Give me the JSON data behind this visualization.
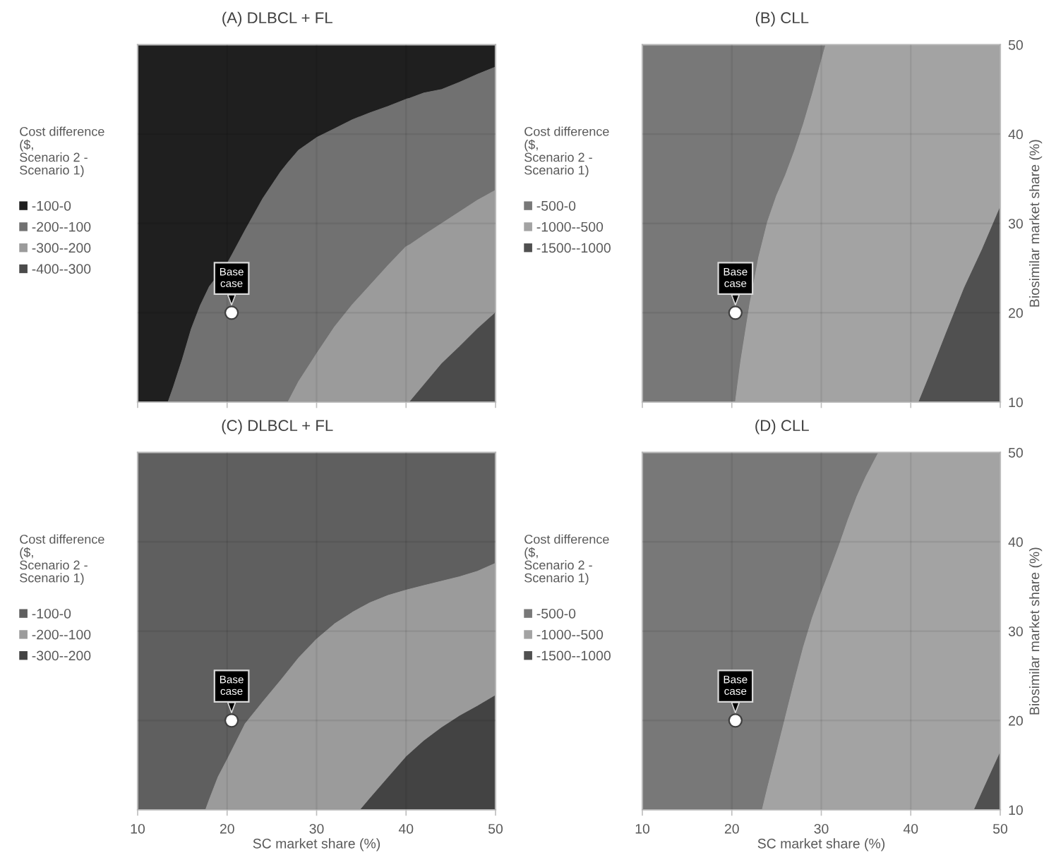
{
  "chart_data": [
    {
      "type": "area",
      "title": "(A) DLBCL + FL",
      "legend_title": "Cost difference\n($,\nScenario 2 -\nScenario 1)",
      "legend": "left",
      "grid": true,
      "tick_labels": false,
      "xlim": [
        10,
        50
      ],
      "ylim": [
        10,
        50
      ],
      "xticks": [
        10,
        20,
        30,
        40,
        50
      ],
      "yticks": [
        10,
        20,
        30,
        40,
        50
      ],
      "x": [
        10,
        12,
        13.4,
        14,
        15,
        16,
        17,
        18,
        20,
        20.5,
        22,
        24,
        26,
        26.8,
        28,
        30,
        32,
        34,
        36,
        38,
        40,
        40.4,
        42,
        44,
        46,
        48,
        50
      ],
      "series": [
        {
          "name": "-100-0",
          "color": "#1f1f1f",
          "values": [
            50,
            50,
            50,
            50,
            50,
            50,
            50,
            50,
            50,
            50,
            50,
            50,
            50,
            50,
            50,
            50,
            50,
            50,
            50,
            50,
            50,
            50,
            50,
            50,
            50,
            50,
            50
          ]
        },
        {
          "name": "-200--100",
          "color": "#717171",
          "values": [
            null,
            null,
            10,
            11.7,
            14.8,
            18.2,
            20.8,
            22.9,
            25.5,
            26.4,
            29.2,
            32.8,
            35.8,
            36.8,
            38.2,
            39.6,
            40.6,
            41.6,
            42.4,
            43.1,
            43.9,
            44.0,
            44.6,
            45.0,
            45.8,
            46.7,
            47.5
          ]
        },
        {
          "name": "-300--200",
          "color": "#9b9b9b",
          "values": [
            null,
            null,
            null,
            null,
            null,
            null,
            null,
            null,
            null,
            null,
            null,
            null,
            null,
            10,
            12.3,
            15.4,
            18.4,
            20.9,
            23.1,
            25.3,
            27.4,
            27.6,
            28.7,
            30.0,
            31.3,
            32.6,
            33.7
          ]
        },
        {
          "name": "-400--300",
          "color": "#4b4b4b",
          "values": [
            null,
            null,
            null,
            null,
            null,
            null,
            null,
            null,
            null,
            null,
            null,
            null,
            null,
            null,
            null,
            null,
            null,
            null,
            null,
            null,
            null,
            10,
            11.9,
            14.3,
            16.2,
            18.2,
            20.0
          ]
        },
        {
          "type": "scatter",
          "marker": "circle",
          "color": "#ffffff",
          "values": [
            null,
            null,
            null,
            null,
            null,
            null,
            null,
            null,
            null,
            20,
            null,
            null,
            null,
            null,
            null,
            null,
            null,
            null,
            null,
            null,
            null,
            null,
            null,
            null,
            null,
            null,
            null
          ]
        }
      ],
      "annotations": [
        "Base\ncase"
      ]
    },
    {
      "type": "area",
      "title": "(B) CLL",
      "ylabel": "Biosimilar market share (%)",
      "legend_title": "Cost difference\n($,\nScenario 2 -\nScenario 1)",
      "legend": "left",
      "grid": true,
      "tick_labels": "y",
      "xlim": [
        10,
        50
      ],
      "ylim": [
        10,
        50
      ],
      "xticks": [
        10,
        20,
        30,
        40,
        50
      ],
      "yticks": [
        10,
        20,
        30,
        40,
        50
      ],
      "x": [
        10,
        15,
        20,
        20.4,
        21,
        22,
        23,
        24,
        25,
        26,
        27,
        28,
        29,
        30,
        30.5,
        35,
        40,
        40.9,
        42,
        44,
        46,
        48,
        50
      ],
      "series": [
        {
          "name": "-500-0",
          "color": "#787878",
          "values": [
            50,
            50,
            50,
            50,
            50,
            50,
            50,
            50,
            50,
            50,
            50,
            50,
            50,
            50,
            50,
            null,
            null,
            null,
            null,
            null,
            null,
            null,
            null
          ]
        },
        {
          "name": "-1000--500",
          "color": "#a3a3a3",
          "values": [
            null,
            null,
            null,
            10,
            14.6,
            20.9,
            26.2,
            30.2,
            33.1,
            35.4,
            38.1,
            41.1,
            44.5,
            48.2,
            50,
            50,
            50,
            50,
            50,
            50,
            50,
            50,
            50
          ]
        },
        {
          "name": "-1500--1000",
          "color": "#505050",
          "values": [
            null,
            null,
            null,
            null,
            null,
            null,
            null,
            null,
            null,
            null,
            null,
            null,
            null,
            null,
            null,
            null,
            null,
            10,
            12.7,
            17.8,
            22.8,
            27.1,
            31.8
          ]
        },
        {
          "type": "scatter",
          "marker": "circle",
          "color": "#ffffff",
          "values": [
            null,
            null,
            null,
            20,
            null,
            null,
            null,
            null,
            null,
            null,
            null,
            null,
            null,
            null,
            null,
            null,
            null,
            null,
            null,
            null,
            null,
            null,
            null
          ]
        }
      ],
      "annotations": [
        "Base\ncase"
      ]
    },
    {
      "type": "area",
      "title": "(C) DLBCL + FL",
      "xlabel": "SC market share (%)",
      "legend_title": "Cost difference\n($,\nScenario 2 -\nScenario 1)",
      "legend": "left",
      "grid": true,
      "tick_labels": "x",
      "xlim": [
        10,
        50
      ],
      "ylim": [
        10,
        50
      ],
      "xticks": [
        10,
        20,
        30,
        40,
        50
      ],
      "yticks": [
        10,
        20,
        30,
        40,
        50
      ],
      "x": [
        10,
        15,
        17.6,
        18,
        19,
        20,
        20.5,
        22,
        24,
        26,
        28,
        30,
        32,
        34,
        34.9,
        36,
        38,
        40,
        42,
        44,
        46,
        48,
        50
      ],
      "series": [
        {
          "name": "-100-0",
          "color": "#5f5f5f",
          "values": [
            50,
            50,
            50,
            50,
            50,
            50,
            50,
            50,
            50,
            50,
            50,
            50,
            50,
            50,
            50,
            50,
            50,
            50,
            50,
            50,
            50,
            50,
            50
          ]
        },
        {
          "name": "-200--100",
          "color": "#9b9b9b",
          "values": [
            null,
            null,
            10,
            11.1,
            13.7,
            15.6,
            16.6,
            19.6,
            22.1,
            24.5,
            27.0,
            29.1,
            30.8,
            32.1,
            32.6,
            33.2,
            34.0,
            34.6,
            35.1,
            35.6,
            36.1,
            36.7,
            37.6
          ]
        },
        {
          "name": "-300--200",
          "color": "#434343",
          "values": [
            null,
            null,
            null,
            null,
            null,
            null,
            null,
            null,
            null,
            null,
            null,
            null,
            null,
            null,
            10,
            11.3,
            13.6,
            15.9,
            17.7,
            19.2,
            20.5,
            21.6,
            22.8
          ]
        },
        {
          "type": "scatter",
          "marker": "circle",
          "color": "#ffffff",
          "values": [
            null,
            null,
            null,
            null,
            null,
            null,
            20,
            null,
            null,
            null,
            null,
            null,
            null,
            null,
            null,
            null,
            null,
            null,
            null,
            null,
            null,
            null,
            null
          ]
        }
      ],
      "annotations": [
        "Base\ncase"
      ]
    },
    {
      "type": "area",
      "title": "(D) CLL",
      "xlabel": "SC market share (%)",
      "ylabel": "Biosimilar market share (%)",
      "legend_title": "Cost difference\n($,\nScenario 2 -\nScenario 1)",
      "legend": "left",
      "grid": true,
      "xlim": [
        10,
        50
      ],
      "ylim": [
        10,
        50
      ],
      "xticks": [
        10,
        20,
        30,
        40,
        50
      ],
      "yticks": [
        10,
        20,
        30,
        40,
        50
      ],
      "x": [
        10,
        15,
        20,
        20.4,
        23.4,
        24,
        25,
        26,
        27,
        28,
        29,
        30,
        31,
        32,
        33,
        34,
        35,
        36.4,
        40,
        45,
        47.1,
        48,
        49,
        50
      ],
      "series": [
        {
          "name": "-500-0",
          "color": "#787878",
          "values": [
            50,
            50,
            50,
            50,
            50,
            50,
            50,
            50,
            50,
            50,
            50,
            50,
            50,
            50,
            50,
            50,
            50,
            50,
            null,
            null,
            null,
            null,
            null,
            null
          ]
        },
        {
          "name": "-1000--500",
          "color": "#a3a3a3",
          "values": [
            null,
            null,
            null,
            null,
            10,
            12.5,
            16.4,
            20.4,
            24.4,
            28.2,
            31.5,
            34.3,
            36.9,
            39.6,
            42.5,
            45.1,
            47.3,
            50,
            50,
            50,
            50,
            50,
            50,
            50
          ]
        },
        {
          "name": "-1500--1000",
          "color": "#505050",
          "values": [
            null,
            null,
            null,
            null,
            null,
            null,
            null,
            null,
            null,
            null,
            null,
            null,
            null,
            null,
            null,
            null,
            null,
            null,
            null,
            null,
            10,
            12.0,
            14.2,
            16.4
          ]
        },
        {
          "type": "scatter",
          "marker": "circle",
          "color": "#ffffff",
          "values": [
            null,
            null,
            null,
            20,
            null,
            null,
            null,
            null,
            null,
            null,
            null,
            null,
            null,
            null,
            null,
            null,
            null,
            null,
            null,
            null,
            null,
            null,
            null,
            null
          ]
        }
      ],
      "annotations": [
        "Base\ncase"
      ]
    }
  ]
}
